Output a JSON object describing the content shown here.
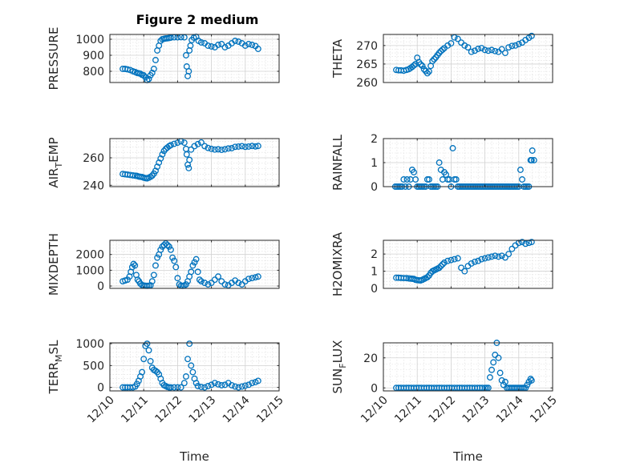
{
  "figure": {
    "title": "Figure 2 medium"
  },
  "chart_data": [
    {
      "type": "scatter",
      "ylabel": "PRESSURE",
      "ylim": [
        730,
        1030
      ],
      "yticks": [
        800,
        900,
        1000
      ],
      "xlim": [
        10,
        15
      ],
      "grid": "on",
      "x": [
        10.38,
        10.45,
        10.52,
        10.6,
        10.68,
        10.75,
        10.8,
        10.85,
        10.9,
        10.95,
        11.0,
        11.05,
        11.1,
        11.15,
        11.2,
        11.25,
        11.3,
        11.35,
        11.4,
        11.45,
        11.5,
        11.55,
        11.6,
        11.65,
        11.7,
        11.75,
        11.8,
        11.9,
        12.0,
        12.1,
        12.2,
        12.25,
        12.27,
        12.3,
        12.33,
        12.35,
        12.38,
        12.42,
        12.48,
        12.55,
        12.62,
        12.7,
        12.8,
        12.9,
        13.0,
        13.1,
        13.2,
        13.3,
        13.4,
        13.5,
        13.6,
        13.7,
        13.8,
        13.9,
        14.0,
        14.1,
        14.2,
        14.3,
        14.38
      ],
      "y": [
        815,
        815,
        812,
        808,
        800,
        795,
        790,
        788,
        785,
        778,
        775,
        762,
        745,
        752,
        775,
        790,
        815,
        870,
        930,
        960,
        990,
        1000,
        1003,
        1005,
        1006,
        1008,
        1010,
        1012,
        1012,
        1013,
        1012,
        900,
        830,
        770,
        800,
        930,
        960,
        995,
        1010,
        1015,
        990,
        980,
        975,
        960,
        955,
        950,
        965,
        970,
        950,
        960,
        975,
        990,
        985,
        975,
        960,
        970,
        965,
        958,
        940
      ]
    },
    {
      "type": "scatter",
      "ylabel": "THETA",
      "ylim": [
        260,
        273
      ],
      "yticks": [
        260,
        265,
        270
      ],
      "xlim": [
        10,
        15
      ],
      "grid": "on",
      "x": [
        10.38,
        10.45,
        10.52,
        10.6,
        10.68,
        10.75,
        10.8,
        10.85,
        10.9,
        10.95,
        11.0,
        11.05,
        11.1,
        11.15,
        11.2,
        11.25,
        11.3,
        11.35,
        11.4,
        11.45,
        11.5,
        11.55,
        11.6,
        11.65,
        11.7,
        11.75,
        11.8,
        11.9,
        12.0,
        12.1,
        12.2,
        12.3,
        12.4,
        12.5,
        12.6,
        12.7,
        12.8,
        12.9,
        13.0,
        13.1,
        13.2,
        13.3,
        13.4,
        13.5,
        13.6,
        13.7,
        13.8,
        13.9,
        14.0,
        14.1,
        14.2,
        14.3,
        14.38
      ],
      "y": [
        263.4,
        263.3,
        263.3,
        263.2,
        263.4,
        263.6,
        263.9,
        264.2,
        264.6,
        265.0,
        266.7,
        265.5,
        264.9,
        264.5,
        263.6,
        263.1,
        262.5,
        263.0,
        264.5,
        265.8,
        266.3,
        266.8,
        267.4,
        268.0,
        268.5,
        268.9,
        269.3,
        270.0,
        270.6,
        272.2,
        271.8,
        270.8,
        270.0,
        269.5,
        268.3,
        268.6,
        269.1,
        269.3,
        268.8,
        268.6,
        268.8,
        268.5,
        268.3,
        269.0,
        268.0,
        269.5,
        269.9,
        270.0,
        270.4,
        270.8,
        271.5,
        272.1,
        272.6
      ]
    },
    {
      "type": "scatter",
      "ylabel": "AIR_TEMP",
      "ylim": [
        239,
        274
      ],
      "yticks": [
        240,
        260
      ],
      "xlim": [
        10,
        15
      ],
      "grid": "on",
      "x": [
        10.38,
        10.45,
        10.52,
        10.6,
        10.68,
        10.75,
        10.8,
        10.85,
        10.9,
        10.95,
        11.0,
        11.05,
        11.1,
        11.15,
        11.2,
        11.25,
        11.3,
        11.35,
        11.4,
        11.45,
        11.5,
        11.55,
        11.6,
        11.65,
        11.7,
        11.75,
        11.8,
        11.9,
        12.0,
        12.1,
        12.2,
        12.25,
        12.27,
        12.3,
        12.33,
        12.35,
        12.4,
        12.5,
        12.6,
        12.7,
        12.8,
        12.9,
        13.0,
        13.1,
        13.2,
        13.3,
        13.4,
        13.5,
        13.6,
        13.7,
        13.8,
        13.9,
        14.0,
        14.1,
        14.2,
        14.3,
        14.38
      ],
      "y": [
        248.2,
        248.0,
        247.8,
        247.5,
        247.2,
        247.0,
        246.8,
        246.4,
        246.2,
        246.0,
        245.5,
        245.2,
        245.0,
        245.5,
        246.2,
        247.0,
        248.5,
        250.5,
        253.5,
        256.5,
        259.5,
        262.5,
        265.0,
        266.5,
        267.5,
        268.5,
        269.2,
        270.2,
        271.0,
        272.0,
        271.0,
        266.5,
        262.5,
        255.0,
        252.5,
        258.5,
        266.0,
        268.5,
        270.0,
        271.2,
        268.5,
        267.2,
        266.5,
        266.0,
        266.2,
        265.8,
        266.2,
        266.8,
        267.0,
        268.0,
        268.2,
        268.5,
        268.0,
        268.2,
        268.6,
        268.3,
        268.6
      ]
    },
    {
      "type": "scatter",
      "ylabel": "RAINFALL",
      "ylim": [
        0,
        2
      ],
      "yticks": [
        0,
        1,
        2
      ],
      "xlim": [
        10,
        15
      ],
      "grid": "on",
      "x": [
        10.35,
        10.4,
        10.45,
        10.5,
        10.55,
        10.6,
        10.65,
        10.7,
        10.75,
        10.8,
        10.85,
        10.9,
        10.95,
        11.0,
        11.05,
        11.1,
        11.15,
        11.2,
        11.25,
        11.3,
        11.35,
        11.4,
        11.45,
        11.5,
        11.55,
        11.6,
        11.65,
        11.7,
        11.75,
        11.8,
        11.85,
        11.9,
        11.95,
        12.0,
        12.05,
        12.1,
        12.15,
        12.2,
        12.25,
        12.3,
        12.35,
        12.4,
        12.45,
        12.5,
        12.55,
        12.6,
        12.65,
        12.7,
        12.75,
        12.8,
        12.85,
        12.9,
        12.95,
        13.0,
        13.05,
        13.1,
        13.15,
        13.2,
        13.25,
        13.3,
        13.35,
        13.4,
        13.45,
        13.5,
        13.55,
        13.6,
        13.65,
        13.7,
        13.75,
        13.8,
        13.85,
        13.9,
        13.95,
        14.0,
        14.05,
        14.1,
        14.15,
        14.2,
        14.25,
        14.3,
        14.35,
        14.38,
        14.4,
        14.45
      ],
      "y": [
        0,
        0,
        0,
        0,
        0,
        0.3,
        0,
        0.3,
        0,
        0.3,
        0.7,
        0.6,
        0.3,
        0,
        0,
        0,
        0,
        0,
        0,
        0.3,
        0.3,
        0,
        0,
        0,
        0,
        0,
        1.0,
        0.7,
        0.3,
        0.6,
        0.5,
        0.3,
        0.3,
        0,
        1.6,
        0.3,
        0.3,
        0,
        0,
        0,
        0,
        0,
        0,
        0,
        0,
        0,
        0,
        0,
        0,
        0,
        0,
        0,
        0,
        0,
        0,
        0,
        0,
        0,
        0,
        0,
        0,
        0,
        0,
        0,
        0,
        0,
        0,
        0,
        0,
        0,
        0,
        0,
        0,
        0,
        0.7,
        0.3,
        0,
        0,
        0,
        0,
        1.1,
        1.1,
        1.5,
        1.1
      ]
    },
    {
      "type": "scatter",
      "ylabel": "MIXDEPTH",
      "ylim": [
        -150,
        2900
      ],
      "yticks": [
        0,
        1000,
        2000
      ],
      "xlim": [
        10,
        15
      ],
      "grid": "on",
      "x": [
        10.38,
        10.45,
        10.52,
        10.58,
        10.62,
        10.66,
        10.7,
        10.74,
        10.78,
        10.82,
        10.86,
        10.9,
        10.95,
        11.0,
        11.05,
        11.1,
        11.15,
        11.2,
        11.25,
        11.3,
        11.35,
        11.4,
        11.45,
        11.5,
        11.55,
        11.6,
        11.65,
        11.7,
        11.75,
        11.8,
        11.85,
        11.9,
        11.95,
        12.0,
        12.05,
        12.1,
        12.15,
        12.2,
        12.25,
        12.3,
        12.35,
        12.4,
        12.45,
        12.5,
        12.55,
        12.6,
        12.65,
        12.7,
        12.8,
        12.9,
        13.0,
        13.1,
        13.2,
        13.3,
        13.4,
        13.5,
        13.6,
        13.7,
        13.8,
        13.9,
        14.0,
        14.1,
        14.2,
        14.3,
        14.38
      ],
      "y": [
        300,
        350,
        400,
        600,
        900,
        1200,
        1400,
        1300,
        700,
        400,
        300,
        150,
        60,
        30,
        20,
        10,
        20,
        40,
        300,
        700,
        1300,
        1800,
        2000,
        2300,
        2500,
        2600,
        2700,
        2600,
        2500,
        2300,
        1800,
        1600,
        1200,
        500,
        100,
        20,
        10,
        30,
        100,
        300,
        600,
        900,
        1300,
        1500,
        1700,
        900,
        400,
        300,
        200,
        100,
        200,
        400,
        600,
        300,
        100,
        50,
        200,
        350,
        200,
        100,
        300,
        450,
        500,
        550,
        600
      ]
    },
    {
      "type": "scatter",
      "ylabel": "H2OMIXRA",
      "ylim": [
        0,
        2.8
      ],
      "yticks": [
        0,
        1,
        2
      ],
      "xlim": [
        10,
        15
      ],
      "grid": "on",
      "x": [
        10.38,
        10.45,
        10.52,
        10.6,
        10.68,
        10.75,
        10.8,
        10.85,
        10.9,
        10.95,
        11.0,
        11.05,
        11.1,
        11.15,
        11.2,
        11.25,
        11.3,
        11.35,
        11.4,
        11.45,
        11.5,
        11.55,
        11.6,
        11.65,
        11.7,
        11.75,
        11.8,
        11.9,
        12.0,
        12.1,
        12.2,
        12.3,
        12.4,
        12.5,
        12.6,
        12.7,
        12.8,
        12.9,
        13.0,
        13.1,
        13.2,
        13.3,
        13.4,
        13.5,
        13.6,
        13.7,
        13.8,
        13.9,
        14.0,
        14.1,
        14.2,
        14.3,
        14.38
      ],
      "y": [
        0.62,
        0.62,
        0.61,
        0.6,
        0.6,
        0.58,
        0.57,
        0.56,
        0.55,
        0.5,
        0.48,
        0.47,
        0.46,
        0.5,
        0.55,
        0.6,
        0.65,
        0.75,
        0.9,
        1.0,
        1.05,
        1.1,
        1.15,
        1.2,
        1.3,
        1.4,
        1.5,
        1.6,
        1.65,
        1.7,
        1.75,
        1.2,
        1.0,
        1.3,
        1.45,
        1.55,
        1.6,
        1.7,
        1.75,
        1.8,
        1.85,
        1.9,
        1.85,
        1.9,
        1.8,
        2.0,
        2.3,
        2.5,
        2.65,
        2.7,
        2.6,
        2.65,
        2.7
      ]
    },
    {
      "type": "scatter",
      "ylabel": "TERR_MSL",
      "ylim": [
        -80,
        1020
      ],
      "yticks": [
        0,
        500,
        1000
      ],
      "xlim": [
        10,
        15
      ],
      "grid": "on",
      "x": [
        10.38,
        10.45,
        10.52,
        10.6,
        10.68,
        10.75,
        10.8,
        10.85,
        10.9,
        10.95,
        11.0,
        11.05,
        11.1,
        11.15,
        11.2,
        11.25,
        11.3,
        11.35,
        11.4,
        11.45,
        11.5,
        11.55,
        11.6,
        11.65,
        11.7,
        11.75,
        11.8,
        11.9,
        12.0,
        12.1,
        12.2,
        12.25,
        12.3,
        12.35,
        12.4,
        12.45,
        12.5,
        12.55,
        12.6,
        12.7,
        12.8,
        12.9,
        13.0,
        13.1,
        13.2,
        13.3,
        13.4,
        13.5,
        13.6,
        13.7,
        13.8,
        13.9,
        14.0,
        14.1,
        14.2,
        14.3,
        14.38
      ],
      "y": [
        0,
        0,
        0,
        0,
        0,
        20,
        80,
        150,
        250,
        350,
        650,
        950,
        1000,
        850,
        600,
        450,
        400,
        380,
        350,
        300,
        200,
        100,
        50,
        30,
        10,
        0,
        0,
        0,
        0,
        0,
        100,
        250,
        650,
        1000,
        500,
        350,
        200,
        100,
        30,
        10,
        0,
        30,
        60,
        100,
        70,
        50,
        60,
        100,
        50,
        20,
        0,
        20,
        40,
        60,
        100,
        120,
        150
      ]
    },
    {
      "type": "scatter",
      "ylabel": "SUN_FLUX",
      "ylim": [
        -2,
        30
      ],
      "yticks": [
        0,
        20
      ],
      "xlim": [
        10,
        15
      ],
      "grid": "on",
      "x": [
        10.38,
        10.45,
        10.52,
        10.6,
        10.68,
        10.75,
        10.82,
        10.9,
        10.98,
        11.05,
        11.12,
        11.2,
        11.28,
        11.35,
        11.42,
        11.5,
        11.58,
        11.65,
        11.72,
        11.8,
        11.88,
        11.95,
        12.02,
        12.1,
        12.18,
        12.25,
        12.32,
        12.4,
        12.48,
        12.55,
        12.62,
        12.7,
        12.78,
        12.85,
        12.92,
        13.0,
        13.05,
        13.1,
        13.15,
        13.2,
        13.25,
        13.3,
        13.35,
        13.4,
        13.45,
        13.5,
        13.55,
        13.6,
        13.65,
        13.7,
        13.75,
        13.8,
        13.85,
        13.9,
        13.95,
        14.0,
        14.05,
        14.1,
        14.15,
        14.2,
        14.25,
        14.3,
        14.35,
        14.38
      ],
      "y": [
        0,
        0,
        0,
        0,
        0,
        0,
        0,
        0,
        0,
        0,
        0,
        0,
        0,
        0,
        0,
        0,
        0,
        0,
        0,
        0,
        0,
        0,
        0,
        0,
        0,
        0,
        0,
        0,
        0,
        0,
        0,
        0,
        0,
        0,
        0,
        0,
        0,
        0,
        7,
        12,
        17,
        22,
        30,
        20,
        10,
        5,
        2,
        4,
        0,
        0,
        0,
        0,
        0,
        0,
        0,
        0,
        0,
        0,
        0,
        0,
        2,
        4,
        6,
        5
      ]
    }
  ],
  "x_axis": {
    "tick_values": [
      10,
      11,
      12,
      13,
      14,
      15
    ],
    "tick_labels": [
      "12/10",
      "12/11",
      "12/12",
      "12/13",
      "12/14",
      "12/15"
    ],
    "xlabel": "Time"
  }
}
